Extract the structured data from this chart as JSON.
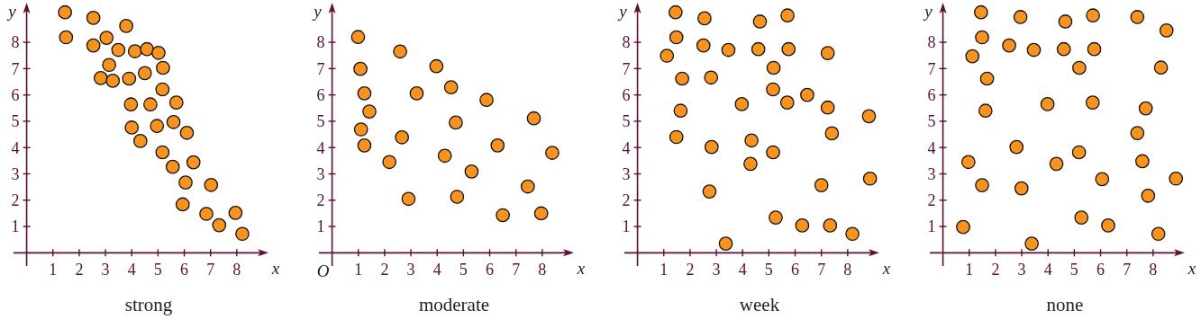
{
  "chart_data": [
    {
      "type": "scatter",
      "title": "strong",
      "xlabel": "x",
      "ylabel": "y",
      "xlim": [
        -0.5,
        9
      ],
      "ylim": [
        -0.5,
        9.3
      ],
      "xticks": [
        1,
        2,
        3,
        4,
        5,
        6,
        7,
        8
      ],
      "yticks": [
        1,
        2,
        3,
        4,
        5,
        6,
        7,
        8
      ],
      "marker": "circle",
      "series": [
        {
          "color": "#f7931e",
          "x": [
            1.46,
            1.5,
            2.54,
            2.54,
            3.04,
            3.79,
            3.49,
            4.12,
            4.58,
            5.02,
            3.14,
            2.82,
            3.28,
            3.9,
            4.5,
            5.19,
            5.17,
            3.97,
            4.71,
            5.7,
            5.59,
            4.96,
            4.0,
            4.33,
            6.1,
            5.17,
            6.35,
            5.56,
            6.05,
            7.02,
            5.94,
            6.84,
            7.95,
            7.33,
            8.21
          ],
          "values": [
            9.14,
            8.19,
            8.93,
            7.88,
            8.17,
            8.62,
            7.71,
            7.66,
            7.74,
            7.6,
            7.14,
            6.64,
            6.54,
            6.62,
            6.83,
            7.03,
            6.21,
            5.64,
            5.64,
            5.71,
            4.97,
            4.82,
            4.76,
            4.25,
            4.56,
            3.82,
            3.44,
            3.27,
            2.67,
            2.58,
            1.84,
            1.48,
            1.52,
            1.05,
            0.72
          ]
        }
      ]
    },
    {
      "type": "scatter",
      "title": "moderate",
      "xlabel": "x",
      "ylabel": "y",
      "annotations": [
        "O"
      ],
      "xlim": [
        -0.5,
        9
      ],
      "ylim": [
        -0.5,
        9.3
      ],
      "xticks": [
        1,
        2,
        3,
        4,
        5,
        6,
        7,
        8
      ],
      "yticks": [
        1,
        2,
        3,
        4,
        5,
        6,
        7,
        8
      ],
      "marker": "circle",
      "series": [
        {
          "color": "#f7931e",
          "x": [
            0.99,
            1.08,
            1.23,
            1.42,
            1.1,
            1.23,
            2.18,
            2.59,
            2.66,
            2.91,
            3.22,
            3.97,
            4.29,
            4.53,
            4.71,
            4.76,
            5.31,
            5.88,
            6.3,
            6.5,
            7.68,
            7.45,
            7.96,
            8.38
          ],
          "values": [
            8.2,
            6.99,
            6.06,
            5.37,
            4.69,
            4.08,
            3.45,
            7.65,
            4.39,
            2.05,
            6.06,
            7.09,
            3.69,
            6.29,
            4.95,
            2.13,
            3.09,
            5.81,
            4.08,
            1.43,
            5.11,
            2.52,
            1.5,
            3.8
          ]
        }
      ]
    },
    {
      "type": "scatter",
      "title": "week",
      "xlabel": "x",
      "ylabel": "y",
      "xlim": [
        -0.5,
        9
      ],
      "ylim": [
        -0.5,
        9.3
      ],
      "xticks": [
        1,
        2,
        3,
        4,
        5,
        6,
        7,
        8
      ],
      "yticks": [
        1,
        2,
        3,
        4,
        5,
        6,
        7,
        8
      ],
      "marker": "circle",
      "series": [
        {
          "color": "#f7931e",
          "x": [
            1.45,
            1.48,
            1.12,
            1.7,
            1.64,
            1.48,
            2.55,
            2.51,
            2.8,
            2.82,
            2.74,
            3.36,
            3.46,
            3.97,
            4.34,
            4.3,
            4.66,
            4.6,
            5.18,
            5.16,
            5.16,
            5.26,
            5.71,
            5.75,
            5.7,
            6.46,
            6.27,
            7.24,
            7.24,
            7.4,
            7.0,
            7.33,
            8.18,
            8.81,
            8.85
          ],
          "values": [
            9.14,
            8.19,
            7.49,
            6.62,
            5.4,
            4.4,
            8.91,
            7.88,
            6.66,
            4.02,
            2.33,
            0.35,
            7.71,
            5.65,
            4.27,
            3.38,
            8.79,
            7.74,
            7.03,
            6.21,
            3.82,
            1.34,
            9.02,
            7.74,
            5.71,
            6.0,
            1.04,
            7.59,
            5.52,
            4.54,
            2.57,
            1.04,
            0.72,
            5.19,
            2.82
          ]
        }
      ]
    },
    {
      "type": "scatter",
      "title": "none",
      "xlabel": "x",
      "ylabel": "y",
      "xlim": [
        -0.5,
        9
      ],
      "ylim": [
        -0.5,
        9.3
      ],
      "xticks": [
        1,
        2,
        3,
        4,
        5,
        6,
        7,
        8
      ],
      "yticks": [
        1,
        2,
        3,
        4,
        5,
        6,
        7,
        8
      ],
      "marker": "circle",
      "series": [
        {
          "color": "#f7931e",
          "x": [
            1.45,
            1.49,
            1.12,
            1.68,
            1.62,
            0.97,
            1.49,
            0.77,
            2.52,
            2.95,
            2.8,
            2.99,
            3.38,
            3.46,
            3.98,
            4.32,
            4.66,
            4.6,
            5.19,
            5.18,
            5.27,
            5.71,
            5.76,
            5.7,
            6.06,
            6.29,
            7.4,
            8.51,
            8.3,
            7.72,
            7.4,
            7.59,
            7.81,
            8.2,
            8.87
          ],
          "values": [
            9.14,
            8.19,
            7.47,
            6.62,
            5.4,
            3.45,
            2.57,
            0.98,
            7.88,
            8.96,
            4.02,
            2.45,
            0.35,
            7.71,
            5.65,
            3.38,
            8.79,
            7.74,
            7.03,
            3.82,
            1.34,
            9.02,
            7.74,
            5.71,
            2.8,
            1.04,
            8.96,
            8.45,
            7.04,
            5.49,
            4.55,
            3.48,
            2.17,
            0.72,
            2.82
          ]
        }
      ]
    }
  ]
}
